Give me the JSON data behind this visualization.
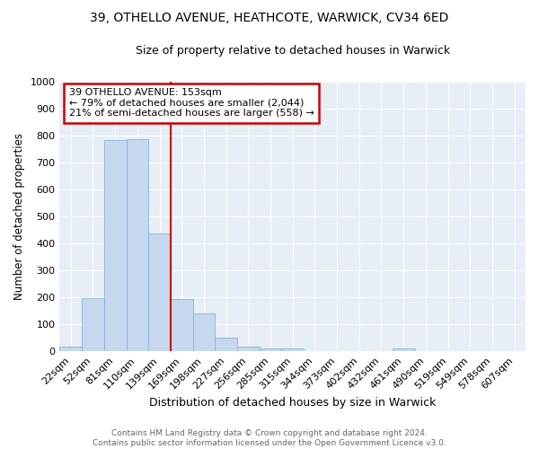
{
  "title": "39, OTHELLO AVENUE, HEATHCOTE, WARWICK, CV34 6ED",
  "subtitle": "Size of property relative to detached houses in Warwick",
  "xlabel": "Distribution of detached houses by size in Warwick",
  "ylabel": "Number of detached properties",
  "footer_line1": "Contains HM Land Registry data © Crown copyright and database right 2024.",
  "footer_line2": "Contains public sector information licensed under the Open Government Licence v3.0.",
  "categories": [
    "22sqm",
    "52sqm",
    "81sqm",
    "110sqm",
    "139sqm",
    "169sqm",
    "198sqm",
    "227sqm",
    "256sqm",
    "285sqm",
    "315sqm",
    "344sqm",
    "373sqm",
    "402sqm",
    "432sqm",
    "461sqm",
    "490sqm",
    "519sqm",
    "549sqm",
    "578sqm",
    "607sqm"
  ],
  "values": [
    18,
    197,
    782,
    787,
    435,
    192,
    141,
    50,
    18,
    12,
    11,
    0,
    0,
    0,
    0,
    10,
    0,
    0,
    0,
    0,
    0
  ],
  "bar_color": "#c5d8ee",
  "bar_edge_color": "#8ab4d8",
  "vline_x_index": 4.5,
  "vline_color": "#cc0000",
  "annotation_title": "39 OTHELLO AVENUE: 153sqm",
  "annotation_line1": "← 79% of detached houses are smaller (2,044)",
  "annotation_line2": "21% of semi-detached houses are larger (558) →",
  "annotation_box_color": "#cc0000",
  "ylim": [
    0,
    1000
  ],
  "yticks": [
    0,
    100,
    200,
    300,
    400,
    500,
    600,
    700,
    800,
    900,
    1000
  ],
  "plot_bg_color": "#e8eef5",
  "grid_color": "#ffffff",
  "title_fontsize": 10,
  "subtitle_fontsize": 9,
  "ylabel_fontsize": 8.5,
  "xlabel_fontsize": 9,
  "tick_fontsize": 8,
  "footer_fontsize": 6.5,
  "footer_color": "#666666"
}
